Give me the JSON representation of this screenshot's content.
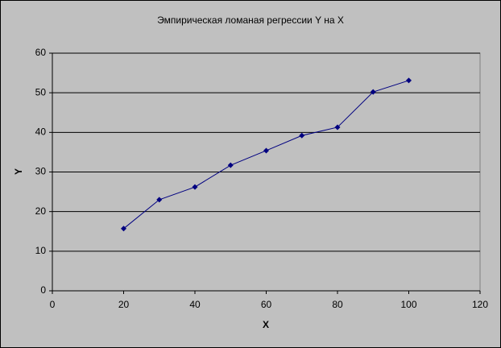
{
  "chart_data": {
    "type": "scatter",
    "title": "Эмпирическая ломаная регрессии Y на X",
    "x_label": "X",
    "y_label": "Y",
    "x": [
      20,
      30,
      40,
      50,
      60,
      70,
      80,
      90,
      100
    ],
    "series": [
      {
        "color": "#000080",
        "values": [
          15.7,
          23,
          26.2,
          31.7,
          35.4,
          39.2,
          41.3,
          50.2,
          53.1
        ]
      }
    ],
    "xlim": [
      0,
      120
    ],
    "xticks": [
      0,
      20,
      40,
      60,
      80,
      100,
      120
    ],
    "ylim": [
      0,
      60
    ],
    "yticks": [
      0,
      10,
      20,
      30,
      40,
      50,
      60
    ],
    "grid": true
  }
}
